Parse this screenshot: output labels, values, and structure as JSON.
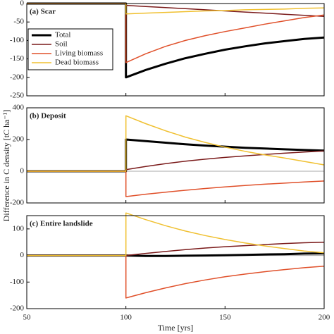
{
  "ylabel": "Difference in C density [tC ha⁻¹]",
  "chart_data": [
    {
      "type": "line",
      "title": "(a) Scar",
      "legend": "upper left",
      "x": [
        50,
        100,
        100,
        110,
        120,
        130,
        140,
        150,
        160,
        170,
        180,
        190,
        200
      ],
      "xlim": [
        50,
        200
      ],
      "xticks": [
        50,
        100,
        150,
        200
      ],
      "ylim": [
        -250,
        0
      ],
      "yticks": [
        -250,
        -200,
        -150,
        -100,
        -50,
        0
      ],
      "series": [
        {
          "name": "Total",
          "color": "#000000",
          "width": 3,
          "values": [
            0,
            0,
            -200,
            -180,
            -163,
            -148,
            -136,
            -125,
            -116,
            -108,
            -102,
            -96,
            -92
          ]
        },
        {
          "name": "Soil",
          "color": "#7a1a1a",
          "width": 1.5,
          "values": [
            0,
            0,
            -5,
            -8,
            -11,
            -14,
            -17,
            -20,
            -23,
            -26,
            -29,
            -32,
            -35
          ]
        },
        {
          "name": "Living biomass",
          "color": "#e0502a",
          "width": 1.5,
          "values": [
            0,
            0,
            -160,
            -136,
            -116,
            -100,
            -87,
            -76,
            -66,
            -56,
            -47,
            -38,
            -31
          ]
        },
        {
          "name": "Dead biomass",
          "color": "#f0c030",
          "width": 1.5,
          "values": [
            0,
            0,
            -28,
            -26,
            -24,
            -22,
            -20,
            -19,
            -17,
            -16,
            -15,
            -13,
            -12
          ]
        }
      ]
    },
    {
      "type": "line",
      "title": "(b) Deposit",
      "zero_line": true,
      "x": [
        50,
        100,
        100,
        110,
        120,
        130,
        140,
        150,
        160,
        170,
        180,
        190,
        200
      ],
      "xlim": [
        50,
        200
      ],
      "xticks": [
        50,
        100,
        150,
        200
      ],
      "ylim": [
        -200,
        400
      ],
      "yticks": [
        -200,
        0,
        200,
        400
      ],
      "series": [
        {
          "color": "#000000",
          "width": 3,
          "values": [
            0,
            0,
            200,
            190,
            180,
            170,
            162,
            155,
            148,
            143,
            138,
            134,
            130
          ]
        },
        {
          "color": "#7a1a1a",
          "width": 1.5,
          "values": [
            0,
            0,
            10,
            30,
            48,
            63,
            76,
            87,
            97,
            106,
            114,
            121,
            128
          ]
        },
        {
          "color": "#e0502a",
          "width": 1.5,
          "values": [
            0,
            0,
            -160,
            -145,
            -132,
            -120,
            -109,
            -99,
            -90,
            -82,
            -75,
            -68,
            -62
          ]
        },
        {
          "color": "#f0c030",
          "width": 1.5,
          "values": [
            0,
            0,
            350,
            300,
            255,
            215,
            182,
            152,
            126,
            103,
            83,
            62,
            40
          ]
        }
      ]
    },
    {
      "type": "line",
      "title": "(c) Entire landslide",
      "zero_line": true,
      "xlabel": "Time [yrs]",
      "x": [
        50,
        100,
        100,
        110,
        120,
        130,
        140,
        150,
        160,
        170,
        180,
        190,
        200
      ],
      "xlim": [
        50,
        200
      ],
      "xticks": [
        50,
        100,
        150,
        200
      ],
      "ylim": [
        -200,
        150
      ],
      "yticks": [
        -200,
        -100,
        0,
        100
      ],
      "series": [
        {
          "color": "#000000",
          "width": 3,
          "values": [
            0,
            0,
            0,
            -2,
            -2,
            -1,
            0,
            1,
            2,
            4,
            5,
            7,
            8
          ]
        },
        {
          "color": "#7a1a1a",
          "width": 1.5,
          "values": [
            0,
            0,
            0,
            8,
            15,
            22,
            28,
            33,
            37,
            41,
            45,
            48,
            50
          ]
        },
        {
          "color": "#e0502a",
          "width": 1.5,
          "values": [
            0,
            0,
            -160,
            -140,
            -122,
            -106,
            -92,
            -80,
            -70,
            -61,
            -53,
            -46,
            -40
          ]
        },
        {
          "color": "#f0c030",
          "width": 1.5,
          "values": [
            0,
            0,
            160,
            135,
            112,
            92,
            75,
            60,
            47,
            36,
            26,
            17,
            10
          ]
        }
      ]
    }
  ]
}
